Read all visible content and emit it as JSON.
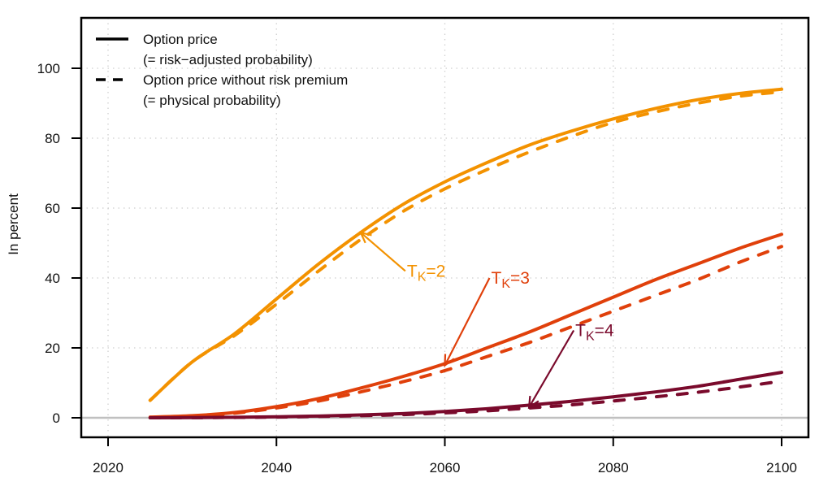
{
  "chart_data": {
    "type": "line",
    "title": "",
    "xlabel": "",
    "ylabel": "In percent",
    "xlim": [
      2016,
      2104
    ],
    "ylim": [
      -5.5,
      114
    ],
    "xticks": [
      2020,
      2040,
      2060,
      2080,
      2100
    ],
    "yticks": [
      0,
      20,
      40,
      60,
      80,
      100
    ],
    "grid": true,
    "legend_position": "top-left",
    "legend": [
      {
        "style": "solid",
        "lines": [
          "Option price",
          "(= risk−adjusted probability)"
        ]
      },
      {
        "style": "dashed",
        "lines": [
          "Option price without risk premium",
          "(= physical probability)"
        ]
      }
    ],
    "x": [
      2025,
      2030,
      2035,
      2040,
      2045,
      2050,
      2055,
      2060,
      2065,
      2070,
      2075,
      2080,
      2085,
      2090,
      2095,
      2100
    ],
    "series": [
      {
        "name": "T_K=2 option price",
        "group": "T_K=2",
        "style": "solid",
        "color": "#F39200",
        "values": [
          5,
          16,
          24,
          34,
          44,
          53,
          61,
          67.5,
          73,
          78,
          82,
          85.5,
          88.5,
          91,
          92.8,
          94
        ]
      },
      {
        "name": "T_K=2 without risk premium",
        "group": "T_K=2",
        "style": "dashed",
        "color": "#F39200",
        "values": [
          5,
          16,
          23.5,
          32.5,
          42,
          51,
          59,
          65.5,
          71,
          76,
          80.5,
          84.5,
          87.5,
          90,
          92,
          93.3
        ]
      },
      {
        "name": "T_K=3 option price",
        "group": "T_K=3",
        "style": "solid",
        "color": "#E0400B",
        "values": [
          0.2,
          0.6,
          1.5,
          3.2,
          5.5,
          8.5,
          11.8,
          15.5,
          20,
          24.5,
          29.5,
          34.5,
          39.5,
          44,
          48.5,
          52.5
        ]
      },
      {
        "name": "T_K=3 without risk premium",
        "group": "T_K=3",
        "style": "dashed",
        "color": "#E0400B",
        "values": [
          0.1,
          0.5,
          1.3,
          2.8,
          4.8,
          7.4,
          10.3,
          13.5,
          17.5,
          21.5,
          26,
          30.5,
          35,
          39.5,
          44.5,
          49
        ]
      },
      {
        "name": "T_K=4 option price",
        "group": "T_K=4",
        "style": "solid",
        "color": "#7A0A2C",
        "values": [
          0,
          0.05,
          0.15,
          0.3,
          0.5,
          0.8,
          1.2,
          1.8,
          2.6,
          3.6,
          4.7,
          6,
          7.4,
          9,
          11,
          13
        ]
      },
      {
        "name": "T_K=4 without risk premium",
        "group": "T_K=4",
        "style": "dashed",
        "color": "#7A0A2C",
        "values": [
          0,
          0.03,
          0.1,
          0.2,
          0.4,
          0.6,
          0.9,
          1.4,
          2,
          2.8,
          3.7,
          4.8,
          6,
          7.3,
          8.8,
          10.5
        ]
      }
    ],
    "annotations": [
      {
        "label_main": "T",
        "label_sub": "K",
        "label_rest": "=2",
        "color": "#F39200",
        "text_at": [
          2055.5,
          42
        ],
        "arrow_to": [
          2050,
          53
        ]
      },
      {
        "label_main": "T",
        "label_sub": "K",
        "label_rest": "=3",
        "color": "#E0400B",
        "text_at": [
          2065.5,
          40
        ],
        "arrow_to": [
          2060,
          15
        ]
      },
      {
        "label_main": "T",
        "label_sub": "K",
        "label_rest": "=4",
        "color": "#7A0A2C",
        "text_at": [
          2075.5,
          25
        ],
        "arrow_to": [
          2070,
          3
        ]
      }
    ],
    "zero_line_color": "#C0C0C0"
  }
}
